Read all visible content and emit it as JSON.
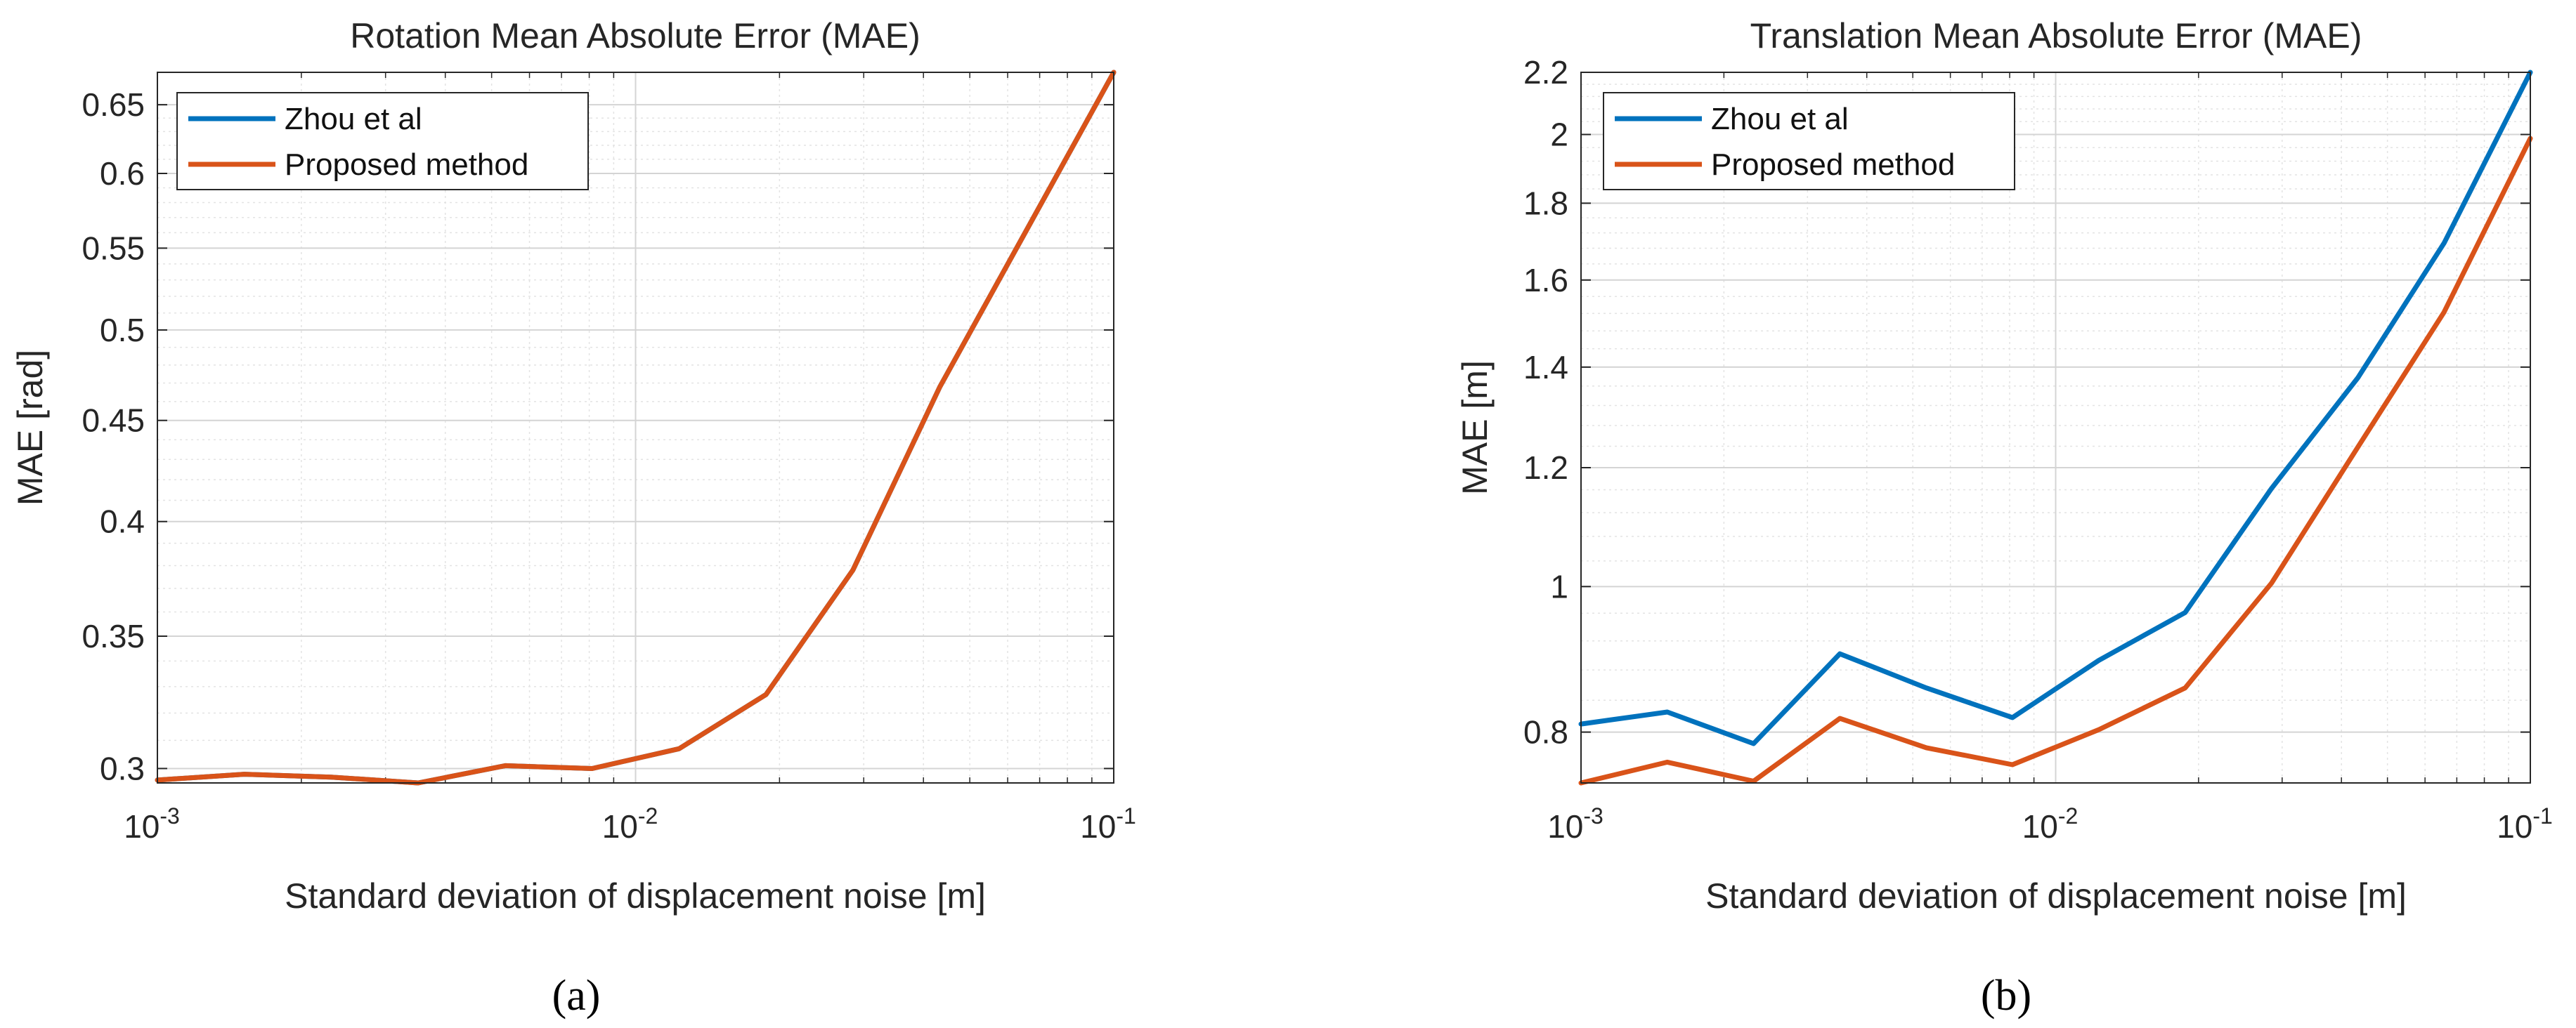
{
  "chart_data": [
    {
      "type": "line",
      "title": "Rotation Mean Absolute Error (MAE)",
      "xlabel": "Standard deviation of displacement noise [m]",
      "ylabel": "MAE [rad]",
      "xscale": "log",
      "yscale": "log",
      "xlim": [
        0.001,
        0.1
      ],
      "ylim": [
        0.295,
        0.675
      ],
      "xticks": [
        0.001,
        0.01,
        0.1
      ],
      "xtick_labels": [
        {
          "base": "10",
          "exp": "-3"
        },
        {
          "base": "10",
          "exp": "-2"
        },
        {
          "base": "10",
          "exp": "-1"
        }
      ],
      "yticks": [
        0.3,
        0.35,
        0.4,
        0.45,
        0.5,
        0.55,
        0.6,
        0.65
      ],
      "ytick_labels": [
        "0.3",
        "0.35",
        "0.4",
        "0.45",
        "0.5",
        "0.55",
        "0.6",
        "0.65"
      ],
      "grid": true,
      "minor_grid": true,
      "legend_position": "top-left",
      "caption": "(a)",
      "series": [
        {
          "name": "Zhou et al",
          "color": "#0072BD",
          "x": [
            0.001,
            0.00152,
            0.00231,
            0.00351,
            0.00534,
            0.00811,
            0.01233,
            0.01874,
            0.02848,
            0.04329,
            0.06579,
            0.1
          ],
          "y": [
            0.296,
            0.298,
            0.297,
            0.295,
            0.301,
            0.3,
            0.307,
            0.327,
            0.378,
            0.468,
            0.562,
            0.675
          ]
        },
        {
          "name": "Proposed method",
          "color": "#D95319",
          "x": [
            0.001,
            0.00152,
            0.00231,
            0.00351,
            0.00534,
            0.00811,
            0.01233,
            0.01874,
            0.02848,
            0.04329,
            0.06579,
            0.1
          ],
          "y": [
            0.296,
            0.298,
            0.297,
            0.295,
            0.301,
            0.3,
            0.307,
            0.327,
            0.378,
            0.468,
            0.562,
            0.675
          ]
        }
      ]
    },
    {
      "type": "line",
      "title": "Translation Mean Absolute Error (MAE)",
      "xlabel": "Standard deviation of displacement noise [m]",
      "ylabel": "MAE [m]",
      "xscale": "log",
      "yscale": "log",
      "xlim": [
        0.001,
        0.1
      ],
      "ylim": [
        0.74,
        2.2
      ],
      "xticks": [
        0.001,
        0.01,
        0.1
      ],
      "xtick_labels": [
        {
          "base": "10",
          "exp": "-3"
        },
        {
          "base": "10",
          "exp": "-2"
        },
        {
          "base": "10",
          "exp": "-1"
        }
      ],
      "yticks": [
        0.8,
        1,
        1.2,
        1.4,
        1.6,
        1.8,
        2,
        2.2
      ],
      "ytick_labels": [
        "0.8",
        "1",
        "1.2",
        "1.4",
        "1.6",
        "1.8",
        "2",
        "2.2"
      ],
      "grid": true,
      "minor_grid": true,
      "legend_position": "top-left",
      "caption": "(b)",
      "series": [
        {
          "name": "Zhou et al",
          "color": "#0072BD",
          "x": [
            0.001,
            0.00152,
            0.00231,
            0.00351,
            0.00534,
            0.00811,
            0.01233,
            0.01874,
            0.02848,
            0.04329,
            0.06579,
            0.1
          ],
          "y": [
            0.81,
            0.825,
            0.786,
            0.902,
            0.856,
            0.818,
            0.893,
            0.961,
            1.162,
            1.377,
            1.693,
            2.2
          ]
        },
        {
          "name": "Proposed method",
          "color": "#D95319",
          "x": [
            0.001,
            0.00152,
            0.00231,
            0.00351,
            0.00534,
            0.00811,
            0.01233,
            0.01874,
            0.02848,
            0.04329,
            0.06579,
            0.1
          ],
          "y": [
            0.74,
            0.764,
            0.742,
            0.817,
            0.781,
            0.761,
            0.803,
            0.856,
            1.005,
            1.238,
            1.523,
            1.988
          ]
        }
      ]
    }
  ]
}
